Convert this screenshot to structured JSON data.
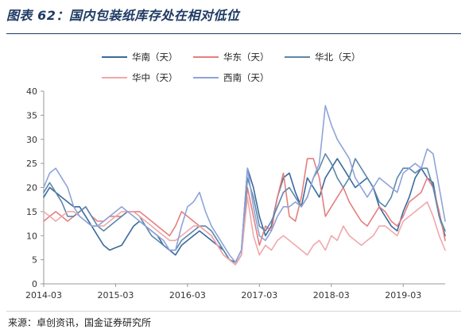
{
  "header": {
    "title": "图表 62：国内包装纸库存处在相对低位"
  },
  "footer": {
    "source": "来源：卓创资讯，国金证券研究所"
  },
  "chart_data": {
    "type": "line",
    "x": [
      "2014-03",
      "2014-04",
      "2014-05",
      "2014-06",
      "2014-07",
      "2014-08",
      "2014-09",
      "2014-10",
      "2014-11",
      "2014-12",
      "2015-01",
      "2015-02",
      "2015-03",
      "2015-04",
      "2015-05",
      "2015-06",
      "2015-07",
      "2015-08",
      "2015-09",
      "2015-10",
      "2015-11",
      "2015-12",
      "2016-01",
      "2016-02",
      "2016-03",
      "2016-04",
      "2016-05",
      "2016-06",
      "2016-07",
      "2016-08",
      "2016-09",
      "2016-10",
      "2016-11",
      "2016-12",
      "2017-01",
      "2017-02",
      "2017-03",
      "2017-04",
      "2017-05",
      "2017-06",
      "2017-07",
      "2017-08",
      "2017-09",
      "2017-10",
      "2017-11",
      "2017-12",
      "2018-01",
      "2018-02",
      "2018-03",
      "2018-04",
      "2018-05",
      "2018-06",
      "2018-07",
      "2018-08",
      "2018-09",
      "2018-10",
      "2018-11",
      "2018-12",
      "2019-01",
      "2019-02",
      "2019-03",
      "2019-04",
      "2019-05",
      "2019-06",
      "2019-07",
      "2019-08",
      "2019-09",
      "2019-10"
    ],
    "xticks": [
      "2014-03",
      "2015-03",
      "2016-03",
      "2017-03",
      "2018-03",
      "2019-03"
    ],
    "ylim": [
      0,
      40
    ],
    "yticks": [
      0,
      5,
      10,
      15,
      20,
      25,
      30,
      35,
      40
    ],
    "legend_position": "top",
    "series": [
      {
        "name": "华南（天）",
        "color": "#3a6a9e",
        "values": [
          18,
          20,
          19,
          18,
          17,
          16,
          16,
          14,
          12,
          10,
          8,
          7,
          7.5,
          8,
          10,
          12,
          13,
          12,
          11,
          10,
          8,
          7,
          6,
          8,
          9,
          10,
          11,
          10,
          9,
          8,
          7,
          5,
          4.5,
          7,
          24,
          20,
          14,
          10,
          12,
          18,
          22,
          23,
          19,
          16,
          22,
          20,
          18,
          22,
          24,
          26,
          24,
          22,
          20,
          21,
          22,
          20,
          16,
          14,
          12,
          11,
          15,
          18,
          22,
          24,
          22,
          21,
          14,
          10
        ]
      },
      {
        "name": "华东（天）",
        "color": "#e57f7f",
        "values": [
          13,
          14,
          15,
          14,
          13,
          14,
          15,
          16,
          14,
          13,
          13,
          14,
          14,
          14,
          15,
          15,
          15,
          14,
          13,
          12,
          11,
          10,
          12,
          15,
          14,
          13,
          12,
          11,
          10,
          8,
          6,
          5,
          4,
          6,
          20,
          14,
          8,
          12,
          11,
          18,
          23,
          14,
          13,
          18,
          26,
          26,
          22,
          14,
          16,
          18,
          20,
          17,
          15,
          13,
          12,
          14,
          16,
          15,
          13,
          12,
          14,
          17,
          18,
          19,
          22,
          20,
          15,
          9
        ]
      },
      {
        "name": "华北（天）",
        "color": "#5c87a9",
        "values": [
          19,
          21,
          19,
          17,
          14,
          14,
          15,
          16,
          14,
          12,
          11,
          12,
          13,
          14,
          15,
          15,
          14,
          12,
          10,
          9,
          8,
          7,
          7,
          9,
          10,
          11,
          12,
          12,
          11,
          9,
          7,
          5,
          4,
          6,
          22,
          18,
          12,
          11,
          13,
          16,
          19,
          20,
          18,
          16,
          18,
          22,
          24,
          27,
          25,
          22,
          20,
          22,
          26,
          24,
          22,
          20,
          17,
          16,
          18,
          22,
          24,
          24,
          23,
          24,
          24,
          20,
          14,
          11
        ]
      },
      {
        "name": "华中（天）",
        "color": "#f0a8ac",
        "values": [
          15,
          14,
          13,
          14,
          15,
          15,
          14,
          13,
          12,
          12,
          12,
          13,
          14,
          15,
          15,
          15,
          14,
          13,
          12,
          11,
          10,
          9,
          9,
          10,
          11,
          12,
          12,
          11,
          10,
          8,
          6,
          5,
          4,
          6,
          18,
          10,
          6,
          8,
          7,
          9,
          10,
          9,
          8,
          7,
          6,
          8,
          9,
          7,
          10,
          9,
          12,
          10,
          9,
          8,
          9,
          10,
          12,
          12,
          11,
          10,
          13,
          14,
          15,
          16,
          17,
          14,
          10,
          7
        ]
      },
      {
        "name": "西南（天）",
        "color": "#8ea4d8",
        "values": [
          20,
          23,
          24,
          22,
          20,
          16,
          14,
          13,
          12,
          12,
          13,
          14,
          15,
          16,
          15,
          14,
          13,
          12,
          11,
          10,
          9,
          7,
          7,
          12,
          16,
          17,
          19,
          15,
          12,
          10,
          8,
          6,
          4.5,
          7,
          24,
          16,
          10,
          9,
          11,
          14,
          16,
          16,
          17,
          16,
          18,
          22,
          25,
          37,
          33,
          30,
          28,
          26,
          22,
          20,
          18,
          20,
          22,
          21,
          20,
          19,
          23,
          24,
          25,
          24,
          28,
          27,
          20,
          13
        ]
      }
    ]
  }
}
